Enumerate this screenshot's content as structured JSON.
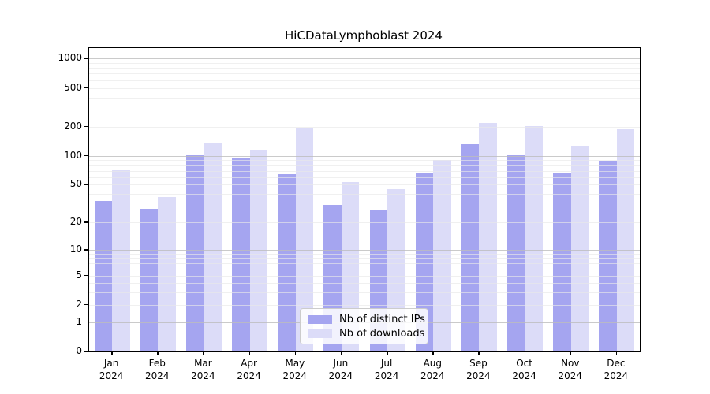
{
  "figure": {
    "background": "#ffffff"
  },
  "chart_data": {
    "type": "bar",
    "title": "HiCDataLymphoblast 2024",
    "categories": [
      "Jan",
      "Feb",
      "Mar",
      "Apr",
      "May",
      "Jun",
      "Jul",
      "Aug",
      "Sep",
      "Oct",
      "Nov",
      "Dec"
    ],
    "year": "2024",
    "series": [
      {
        "name": "Nb of distinct IPs",
        "color": "#a5a5f0",
        "values": [
          34,
          28,
          101,
          96,
          65,
          31,
          27,
          67,
          131,
          102,
          67,
          89
        ]
      },
      {
        "name": "Nb of downloads",
        "color": "#dcdcf8",
        "values": [
          71,
          37,
          137,
          116,
          191,
          53,
          45,
          90,
          219,
          203,
          128,
          188
        ]
      }
    ],
    "xlabel": "",
    "ylabel": "",
    "yscale": "log1p",
    "ylim": [
      0,
      1280
    ],
    "yticks": [
      0,
      1,
      2,
      5,
      10,
      20,
      50,
      100,
      200,
      500,
      1000
    ],
    "grid": "horizontal",
    "grid_major_color": "#bdbdbd",
    "grid_minor_color": "#e8e8e8",
    "spine_color": "#000000",
    "legend_position": "lower center"
  }
}
